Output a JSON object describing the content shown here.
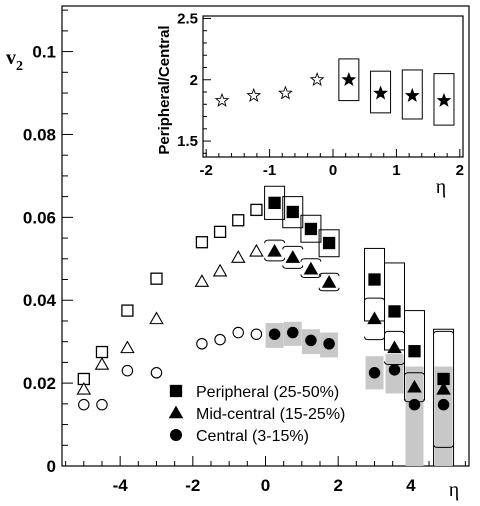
{
  "chart_data": [
    {
      "type": "scatter",
      "title": "",
      "xlabel": "η",
      "ylabel": "v2",
      "xlim": [
        -5.6,
        5.6
      ],
      "ylim": [
        0,
        0.111
      ],
      "x_ticks": [
        -4,
        -2,
        0,
        2,
        4
      ],
      "x_tick_labels": [
        "-4",
        "-2",
        "0",
        "2",
        "4"
      ],
      "y_ticks": [
        0,
        0.02,
        0.04,
        0.06,
        0.08,
        0.1
      ],
      "y_tick_labels": [
        "0",
        "0.02",
        "0.04",
        "0.06",
        "0.08",
        "0.1"
      ],
      "grid": false,
      "legend_placement": "bottom-center",
      "series": [
        {
          "name": "Peripheral (25-50%)",
          "marker": "square",
          "open_points": {
            "x": [
              -5.0,
              -4.5,
              -3.8,
              -3.0,
              -1.75,
              -1.25,
              -0.75,
              -0.25
            ],
            "y": [
              0.021,
              0.0275,
              0.0375,
              0.0452,
              0.054,
              0.0565,
              0.0593,
              0.0618
            ]
          },
          "filled_points": {
            "x": [
              0.25,
              0.75,
              1.25,
              1.75,
              3.0,
              3.55,
              4.1,
              4.9
            ],
            "y": [
              0.0635,
              0.0613,
              0.0572,
              0.0538,
              0.045,
              0.0373,
              0.0277,
              0.021
            ],
            "sys_low": [
              0.0595,
              0.0575,
              0.054,
              0.0505,
              0.035,
              0.028,
              0.016,
              0.0
            ],
            "sys_high": [
              0.0675,
              0.065,
              0.0605,
              0.057,
              0.0525,
              0.049,
              0.0375,
              0.033
            ]
          }
        },
        {
          "name": "Mid-central (15-25%)",
          "marker": "triangle",
          "open_points": {
            "x": [
              -5.0,
              -4.5,
              -3.8,
              -3.0,
              -1.75,
              -1.25,
              -0.75,
              -0.25
            ],
            "y": [
              0.0185,
              0.0245,
              0.0285,
              0.0355,
              0.0445,
              0.047,
              0.0503,
              0.0518
            ]
          },
          "filled_points": {
            "x": [
              0.25,
              0.75,
              1.25,
              1.75,
              3.0,
              3.55,
              4.1,
              4.9
            ],
            "y": [
              0.0518,
              0.0503,
              0.0475,
              0.0443,
              0.0355,
              0.0285,
              0.019,
              0.0185
            ],
            "sys_low": [
              0.0545,
              0.053,
              0.05,
              0.0465,
              0.0405,
              0.0325,
              0.0225,
              0.0325
            ],
            "sys_high": [
              0.0495,
              0.0477,
              0.0455,
              0.0423,
              0.0305,
              0.0245,
              0.0155,
              0.0045
            ]
          }
        },
        {
          "name": "Central (3-15%)",
          "marker": "circle",
          "open_points": {
            "x": [
              -5.0,
              -4.5,
              -3.8,
              -3.0,
              -1.75,
              -1.25,
              -0.75,
              -0.25
            ],
            "y": [
              0.0148,
              0.0148,
              0.023,
              0.0225,
              0.0295,
              0.0305,
              0.0322,
              0.0318
            ]
          },
          "filled_points": {
            "x": [
              0.25,
              0.75,
              1.25,
              1.75,
              3.0,
              3.55,
              4.1,
              4.9
            ],
            "y": [
              0.0318,
              0.0322,
              0.0303,
              0.0295,
              0.0225,
              0.0232,
              0.0148,
              0.0148
            ],
            "sys_low": [
              0.0285,
              0.029,
              0.027,
              0.0262,
              0.0185,
              0.0175,
              0.0,
              0.0
            ],
            "sys_high": [
              0.0345,
              0.0348,
              0.033,
              0.0322,
              0.0265,
              0.027,
              0.024,
              0.024
            ]
          }
        }
      ]
    },
    {
      "type": "scatter",
      "title": "",
      "xlabel": "η",
      "ylabel": "Peripheral/Central",
      "xlim": [
        -2.05,
        2.05
      ],
      "ylim": [
        1.37,
        2.52
      ],
      "x_ticks": [
        -2,
        -1,
        0,
        1,
        2
      ],
      "x_tick_labels": [
        "-2",
        "-1",
        "0",
        "1",
        "2"
      ],
      "y_ticks": [
        1.5,
        2,
        2.5
      ],
      "y_tick_labels": [
        "1.5",
        "2",
        "2.5"
      ],
      "grid": false,
      "series": [
        {
          "marker": "star",
          "open_points": {
            "x": [
              -1.75,
              -1.25,
              -0.75,
              -0.25
            ],
            "y": [
              1.83,
              1.87,
              1.89,
              2.0
            ]
          },
          "filled_points": {
            "x": [
              0.25,
              0.75,
              1.25,
              1.75
            ],
            "y": [
              2.0,
              1.89,
              1.87,
              1.83
            ],
            "sys_low": [
              1.83,
              1.73,
              1.68,
              1.63
            ],
            "sys_high": [
              2.17,
              2.07,
              2.08,
              2.05
            ]
          }
        }
      ]
    }
  ]
}
